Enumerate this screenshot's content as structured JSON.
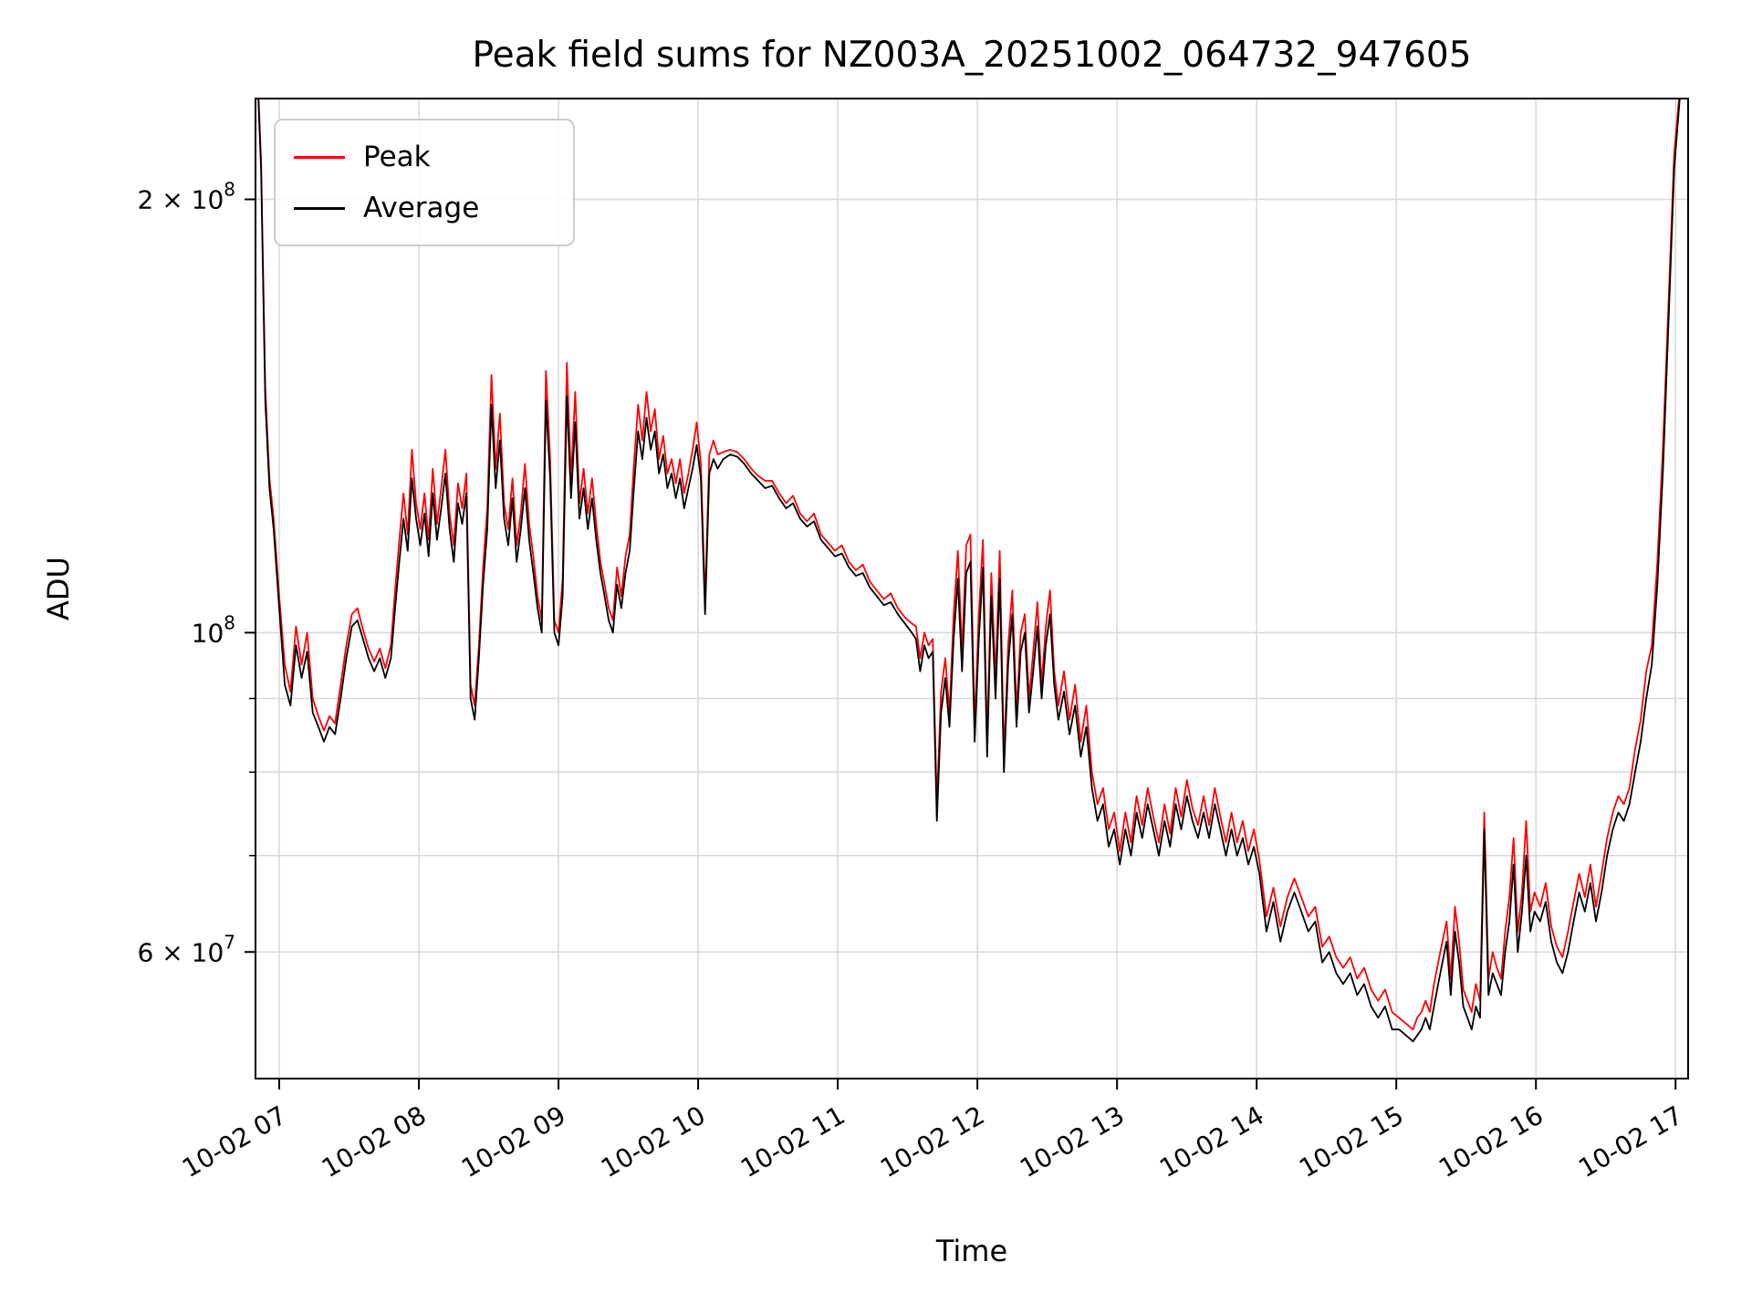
{
  "figure": {
    "background": "#ffffff"
  },
  "chart_data": {
    "type": "line",
    "title": "Peak field sums for NZ003A_20251002_064732_947605",
    "xlabel": "Time",
    "ylabel": "ADU",
    "grid": true,
    "legend": {
      "position": "upper-left",
      "entries": [
        {
          "label": "Peak",
          "color": "#ff0000"
        },
        {
          "label": "Average",
          "color": "#000000"
        }
      ]
    },
    "x_axis": {
      "min": 6.83,
      "max": 17.09,
      "unit": "hour-of-day on 10-02",
      "ticks": [
        {
          "value": 7,
          "label": "10-02 07"
        },
        {
          "value": 8,
          "label": "10-02 08"
        },
        {
          "value": 9,
          "label": "10-02 09"
        },
        {
          "value": 10,
          "label": "10-02 10"
        },
        {
          "value": 11,
          "label": "10-02 11"
        },
        {
          "value": 12,
          "label": "10-02 12"
        },
        {
          "value": 13,
          "label": "10-02 13"
        },
        {
          "value": 14,
          "label": "10-02 14"
        },
        {
          "value": 15,
          "label": "10-02 15"
        },
        {
          "value": 16,
          "label": "10-02 16"
        },
        {
          "value": 17,
          "label": "10-02 17"
        }
      ]
    },
    "y_axis": {
      "scale": "log",
      "min": 49000000,
      "max": 235000000,
      "labeled_ticks": [
        {
          "value": 200000000,
          "base": "2 × 10",
          "exp": "8"
        },
        {
          "value": 100000000,
          "base": "10",
          "exp": "8"
        },
        {
          "value": 60000000,
          "base": "6 × 10",
          "exp": "7"
        }
      ],
      "minor_ticks": [
        60000000,
        70000000,
        80000000,
        90000000,
        100000000,
        200000000
      ]
    },
    "value_scale": 10000000,
    "series": [
      {
        "name": "Peak",
        "color": "#ff0000",
        "column": 2
      },
      {
        "name": "Average",
        "color": "#000000",
        "column": 1
      }
    ],
    "points_format": "[time_hours, average_1e7_ADU, peak_1e7_ADU]",
    "points": [
      [
        6.85,
        23.5,
        23.8
      ],
      [
        6.87,
        21.0,
        21.3
      ],
      [
        6.9,
        14.5,
        14.8
      ],
      [
        6.93,
        12.6,
        12.8
      ],
      [
        6.96,
        11.8,
        12.0
      ],
      [
        7.0,
        10.4,
        10.6
      ],
      [
        7.04,
        9.2,
        9.5
      ],
      [
        7.08,
        8.9,
        9.1
      ],
      [
        7.12,
        9.8,
        10.1
      ],
      [
        7.16,
        9.3,
        9.5
      ],
      [
        7.2,
        9.7,
        10.0
      ],
      [
        7.24,
        8.8,
        9.0
      ],
      [
        7.28,
        8.6,
        8.75
      ],
      [
        7.32,
        8.4,
        8.55
      ],
      [
        7.36,
        8.6,
        8.75
      ],
      [
        7.4,
        8.5,
        8.65
      ],
      [
        7.44,
        9.0,
        9.2
      ],
      [
        7.48,
        9.6,
        9.8
      ],
      [
        7.52,
        10.1,
        10.3
      ],
      [
        7.56,
        10.2,
        10.4
      ],
      [
        7.6,
        9.9,
        10.05
      ],
      [
        7.64,
        9.6,
        9.75
      ],
      [
        7.68,
        9.4,
        9.55
      ],
      [
        7.72,
        9.6,
        9.75
      ],
      [
        7.76,
        9.3,
        9.45
      ],
      [
        7.8,
        9.6,
        9.8
      ],
      [
        7.83,
        10.4,
        10.7
      ],
      [
        7.86,
        11.2,
        11.6
      ],
      [
        7.89,
        12.0,
        12.5
      ],
      [
        7.92,
        11.4,
        11.7
      ],
      [
        7.95,
        12.8,
        13.4
      ],
      [
        7.98,
        12.0,
        12.3
      ],
      [
        8.01,
        11.5,
        11.8
      ],
      [
        8.04,
        12.1,
        12.5
      ],
      [
        8.07,
        11.3,
        11.6
      ],
      [
        8.1,
        12.5,
        13.0
      ],
      [
        8.13,
        11.6,
        11.9
      ],
      [
        8.16,
        12.2,
        12.6
      ],
      [
        8.19,
        12.9,
        13.4
      ],
      [
        8.22,
        11.8,
        12.1
      ],
      [
        8.25,
        11.2,
        11.5
      ],
      [
        8.28,
        12.3,
        12.7
      ],
      [
        8.31,
        11.9,
        12.2
      ],
      [
        8.34,
        12.5,
        12.9
      ],
      [
        8.37,
        9.0,
        9.2
      ],
      [
        8.4,
        8.7,
        8.9
      ],
      [
        8.43,
        9.6,
        9.8
      ],
      [
        8.46,
        10.8,
        11.1
      ],
      [
        8.49,
        11.8,
        12.2
      ],
      [
        8.52,
        14.4,
        15.1
      ],
      [
        8.55,
        12.6,
        13.0
      ],
      [
        8.58,
        13.6,
        14.2
      ],
      [
        8.61,
        12.0,
        12.3
      ],
      [
        8.64,
        11.5,
        11.8
      ],
      [
        8.67,
        12.4,
        12.8
      ],
      [
        8.7,
        11.2,
        11.5
      ],
      [
        8.73,
        11.8,
        12.1
      ],
      [
        8.76,
        12.6,
        13.1
      ],
      [
        8.79,
        11.6,
        11.9
      ],
      [
        8.82,
        11.0,
        11.3
      ],
      [
        8.85,
        10.4,
        10.6
      ],
      [
        8.88,
        10.0,
        10.2
      ],
      [
        8.91,
        14.5,
        15.2
      ],
      [
        8.94,
        12.8,
        13.2
      ],
      [
        8.97,
        10.0,
        10.2
      ],
      [
        9.0,
        9.8,
        10.0
      ],
      [
        9.03,
        10.6,
        10.9
      ],
      [
        9.06,
        14.6,
        15.4
      ],
      [
        9.09,
        12.4,
        12.8
      ],
      [
        9.12,
        14.0,
        14.7
      ],
      [
        9.15,
        12.0,
        12.3
      ],
      [
        9.18,
        12.6,
        13.0
      ],
      [
        9.21,
        11.8,
        12.1
      ],
      [
        9.24,
        12.4,
        12.8
      ],
      [
        9.27,
        11.6,
        11.9
      ],
      [
        9.3,
        11.0,
        11.2
      ],
      [
        9.33,
        10.6,
        10.8
      ],
      [
        9.36,
        10.2,
        10.4
      ],
      [
        9.39,
        10.0,
        10.2
      ],
      [
        9.42,
        10.8,
        11.1
      ],
      [
        9.45,
        10.4,
        10.6
      ],
      [
        9.48,
        11.0,
        11.3
      ],
      [
        9.51,
        11.4,
        11.7
      ],
      [
        9.54,
        12.6,
        13.1
      ],
      [
        9.57,
        13.8,
        14.4
      ],
      [
        9.6,
        13.2,
        13.6
      ],
      [
        9.63,
        14.1,
        14.7
      ],
      [
        9.66,
        13.4,
        13.8
      ],
      [
        9.69,
        13.8,
        14.3
      ],
      [
        9.72,
        12.9,
        13.2
      ],
      [
        9.75,
        13.3,
        13.7
      ],
      [
        9.78,
        12.6,
        12.9
      ],
      [
        9.81,
        12.9,
        13.2
      ],
      [
        9.84,
        12.4,
        12.7
      ],
      [
        9.87,
        12.8,
        13.2
      ],
      [
        9.9,
        12.2,
        12.5
      ],
      [
        9.93,
        12.6,
        12.9
      ],
      [
        9.96,
        13.0,
        13.4
      ],
      [
        9.99,
        13.5,
        14.0
      ],
      [
        10.02,
        12.8,
        13.1
      ],
      [
        10.05,
        10.3,
        10.5
      ],
      [
        10.08,
        12.9,
        13.3
      ],
      [
        10.11,
        13.2,
        13.6
      ],
      [
        10.14,
        13.0,
        13.3
      ],
      [
        10.18,
        13.2,
        13.35
      ],
      [
        10.23,
        13.3,
        13.4
      ],
      [
        10.28,
        13.25,
        13.35
      ],
      [
        10.33,
        13.1,
        13.2
      ],
      [
        10.38,
        12.9,
        13.0
      ],
      [
        10.43,
        12.75,
        12.85
      ],
      [
        10.48,
        12.6,
        12.75
      ],
      [
        10.53,
        12.65,
        12.75
      ],
      [
        10.58,
        12.4,
        12.5
      ],
      [
        10.63,
        12.2,
        12.3
      ],
      [
        10.68,
        12.3,
        12.45
      ],
      [
        10.73,
        12.0,
        12.1
      ],
      [
        10.78,
        11.85,
        11.95
      ],
      [
        10.83,
        11.95,
        12.1
      ],
      [
        10.88,
        11.6,
        11.7
      ],
      [
        10.93,
        11.45,
        11.55
      ],
      [
        10.98,
        11.3,
        11.4
      ],
      [
        11.03,
        11.35,
        11.5
      ],
      [
        11.08,
        11.1,
        11.2
      ],
      [
        11.13,
        10.95,
        11.05
      ],
      [
        11.18,
        11.0,
        11.15
      ],
      [
        11.23,
        10.75,
        10.85
      ],
      [
        11.28,
        10.6,
        10.7
      ],
      [
        11.33,
        10.45,
        10.55
      ],
      [
        11.38,
        10.5,
        10.65
      ],
      [
        11.43,
        10.3,
        10.4
      ],
      [
        11.48,
        10.15,
        10.25
      ],
      [
        11.53,
        10.0,
        10.15
      ],
      [
        11.56,
        9.9,
        10.1
      ],
      [
        11.59,
        9.4,
        9.6
      ],
      [
        11.62,
        9.8,
        10.0
      ],
      [
        11.65,
        9.6,
        9.8
      ],
      [
        11.68,
        9.7,
        9.9
      ],
      [
        11.71,
        7.4,
        7.6
      ],
      [
        11.74,
        8.8,
        9.1
      ],
      [
        11.77,
        9.3,
        9.6
      ],
      [
        11.8,
        8.6,
        8.8
      ],
      [
        11.83,
        9.9,
        10.3
      ],
      [
        11.86,
        10.9,
        11.4
      ],
      [
        11.89,
        9.4,
        9.7
      ],
      [
        11.92,
        11.0,
        11.5
      ],
      [
        11.95,
        11.2,
        11.7
      ],
      [
        11.98,
        8.4,
        8.6
      ],
      [
        12.01,
        9.9,
        10.3
      ],
      [
        12.04,
        11.1,
        11.6
      ],
      [
        12.07,
        8.2,
        8.4
      ],
      [
        12.1,
        10.6,
        11.0
      ],
      [
        12.13,
        9.0,
        9.3
      ],
      [
        12.16,
        10.9,
        11.4
      ],
      [
        12.19,
        8.0,
        8.2
      ],
      [
        12.22,
        9.5,
        9.8
      ],
      [
        12.25,
        10.3,
        10.7
      ],
      [
        12.28,
        8.6,
        8.8
      ],
      [
        12.31,
        9.7,
        10.0
      ],
      [
        12.34,
        10.0,
        10.3
      ],
      [
        12.37,
        8.8,
        9.0
      ],
      [
        12.4,
        9.4,
        9.7
      ],
      [
        12.43,
        10.1,
        10.5
      ],
      [
        12.46,
        9.0,
        9.2
      ],
      [
        12.49,
        9.8,
        10.1
      ],
      [
        12.52,
        10.3,
        10.7
      ],
      [
        12.55,
        9.2,
        9.4
      ],
      [
        12.58,
        8.7,
        8.9
      ],
      [
        12.62,
        9.1,
        9.4
      ],
      [
        12.66,
        8.5,
        8.7
      ],
      [
        12.7,
        8.9,
        9.2
      ],
      [
        12.74,
        8.2,
        8.4
      ],
      [
        12.78,
        8.6,
        8.9
      ],
      [
        12.82,
        7.8,
        8.0
      ],
      [
        12.86,
        7.4,
        7.6
      ],
      [
        12.9,
        7.6,
        7.8
      ],
      [
        12.94,
        7.1,
        7.3
      ],
      [
        12.98,
        7.3,
        7.5
      ],
      [
        13.02,
        6.9,
        7.05
      ],
      [
        13.06,
        7.3,
        7.5
      ],
      [
        13.1,
        7.0,
        7.15
      ],
      [
        13.14,
        7.5,
        7.7
      ],
      [
        13.18,
        7.2,
        7.35
      ],
      [
        13.22,
        7.6,
        7.8
      ],
      [
        13.26,
        7.3,
        7.45
      ],
      [
        13.3,
        7.0,
        7.15
      ],
      [
        13.34,
        7.4,
        7.6
      ],
      [
        13.38,
        7.1,
        7.25
      ],
      [
        13.42,
        7.6,
        7.8
      ],
      [
        13.46,
        7.3,
        7.45
      ],
      [
        13.5,
        7.7,
        7.9
      ],
      [
        13.54,
        7.4,
        7.55
      ],
      [
        13.58,
        7.2,
        7.35
      ],
      [
        13.62,
        7.5,
        7.7
      ],
      [
        13.66,
        7.2,
        7.35
      ],
      [
        13.7,
        7.6,
        7.8
      ],
      [
        13.74,
        7.3,
        7.45
      ],
      [
        13.78,
        7.0,
        7.15
      ],
      [
        13.82,
        7.3,
        7.5
      ],
      [
        13.86,
        7.0,
        7.15
      ],
      [
        13.9,
        7.2,
        7.4
      ],
      [
        13.94,
        6.9,
        7.05
      ],
      [
        13.98,
        7.1,
        7.3
      ],
      [
        14.02,
        6.8,
        6.95
      ],
      [
        14.07,
        6.2,
        6.35
      ],
      [
        14.12,
        6.5,
        6.65
      ],
      [
        14.17,
        6.1,
        6.25
      ],
      [
        14.22,
        6.4,
        6.55
      ],
      [
        14.27,
        6.6,
        6.75
      ],
      [
        14.32,
        6.4,
        6.55
      ],
      [
        14.37,
        6.2,
        6.35
      ],
      [
        14.42,
        6.3,
        6.45
      ],
      [
        14.47,
        5.9,
        6.05
      ],
      [
        14.52,
        6.0,
        6.15
      ],
      [
        14.57,
        5.8,
        5.95
      ],
      [
        14.62,
        5.7,
        5.85
      ],
      [
        14.67,
        5.8,
        5.95
      ],
      [
        14.72,
        5.6,
        5.75
      ],
      [
        14.77,
        5.7,
        5.85
      ],
      [
        14.82,
        5.5,
        5.65
      ],
      [
        14.87,
        5.4,
        5.55
      ],
      [
        14.92,
        5.5,
        5.65
      ],
      [
        14.97,
        5.3,
        5.45
      ],
      [
        15.02,
        5.3,
        5.4
      ],
      [
        15.07,
        5.25,
        5.35
      ],
      [
        15.12,
        5.2,
        5.3
      ],
      [
        15.15,
        5.25,
        5.4
      ],
      [
        15.18,
        5.3,
        5.45
      ],
      [
        15.21,
        5.4,
        5.55
      ],
      [
        15.24,
        5.3,
        5.45
      ],
      [
        15.27,
        5.5,
        5.7
      ],
      [
        15.3,
        5.7,
        5.9
      ],
      [
        15.33,
        5.9,
        6.1
      ],
      [
        15.36,
        6.1,
        6.3
      ],
      [
        15.39,
        5.6,
        5.75
      ],
      [
        15.42,
        6.2,
        6.45
      ],
      [
        15.45,
        5.9,
        6.1
      ],
      [
        15.48,
        5.5,
        5.65
      ],
      [
        15.51,
        5.4,
        5.55
      ],
      [
        15.54,
        5.3,
        5.45
      ],
      [
        15.57,
        5.5,
        5.7
      ],
      [
        15.6,
        5.4,
        5.55
      ],
      [
        15.63,
        7.3,
        7.5
      ],
      [
        15.66,
        5.6,
        5.75
      ],
      [
        15.69,
        5.8,
        6.0
      ],
      [
        15.72,
        5.7,
        5.85
      ],
      [
        15.75,
        5.6,
        5.75
      ],
      [
        15.78,
        6.0,
        6.2
      ],
      [
        15.81,
        6.3,
        6.55
      ],
      [
        15.84,
        6.9,
        7.2
      ],
      [
        15.87,
        6.0,
        6.2
      ],
      [
        15.9,
        6.4,
        6.6
      ],
      [
        15.93,
        7.0,
        7.4
      ],
      [
        15.96,
        6.2,
        6.4
      ],
      [
        15.99,
        6.4,
        6.6
      ],
      [
        16.03,
        6.3,
        6.45
      ],
      [
        16.07,
        6.5,
        6.7
      ],
      [
        16.11,
        6.1,
        6.25
      ],
      [
        16.15,
        5.9,
        6.05
      ],
      [
        16.19,
        5.8,
        5.95
      ],
      [
        16.23,
        6.0,
        6.2
      ],
      [
        16.27,
        6.3,
        6.5
      ],
      [
        16.31,
        6.6,
        6.8
      ],
      [
        16.35,
        6.4,
        6.55
      ],
      [
        16.39,
        6.7,
        6.9
      ],
      [
        16.43,
        6.3,
        6.45
      ],
      [
        16.47,
        6.6,
        6.8
      ],
      [
        16.51,
        7.0,
        7.2
      ],
      [
        16.55,
        7.3,
        7.5
      ],
      [
        16.59,
        7.5,
        7.7
      ],
      [
        16.63,
        7.4,
        7.6
      ],
      [
        16.67,
        7.6,
        7.8
      ],
      [
        16.71,
        8.0,
        8.3
      ],
      [
        16.75,
        8.4,
        8.7
      ],
      [
        16.79,
        9.0,
        9.4
      ],
      [
        16.83,
        9.5,
        9.8
      ],
      [
        16.87,
        10.8,
        11.2
      ],
      [
        16.91,
        13.0,
        13.5
      ],
      [
        16.95,
        16.5,
        17.0
      ],
      [
        16.99,
        21.0,
        21.5
      ],
      [
        17.03,
        23.5,
        23.8
      ],
      [
        17.08,
        23.5,
        23.8
      ]
    ],
    "style": {
      "grid_color": "#d8d8d8",
      "spine_color": "#000000",
      "text_color": "#000000"
    }
  }
}
